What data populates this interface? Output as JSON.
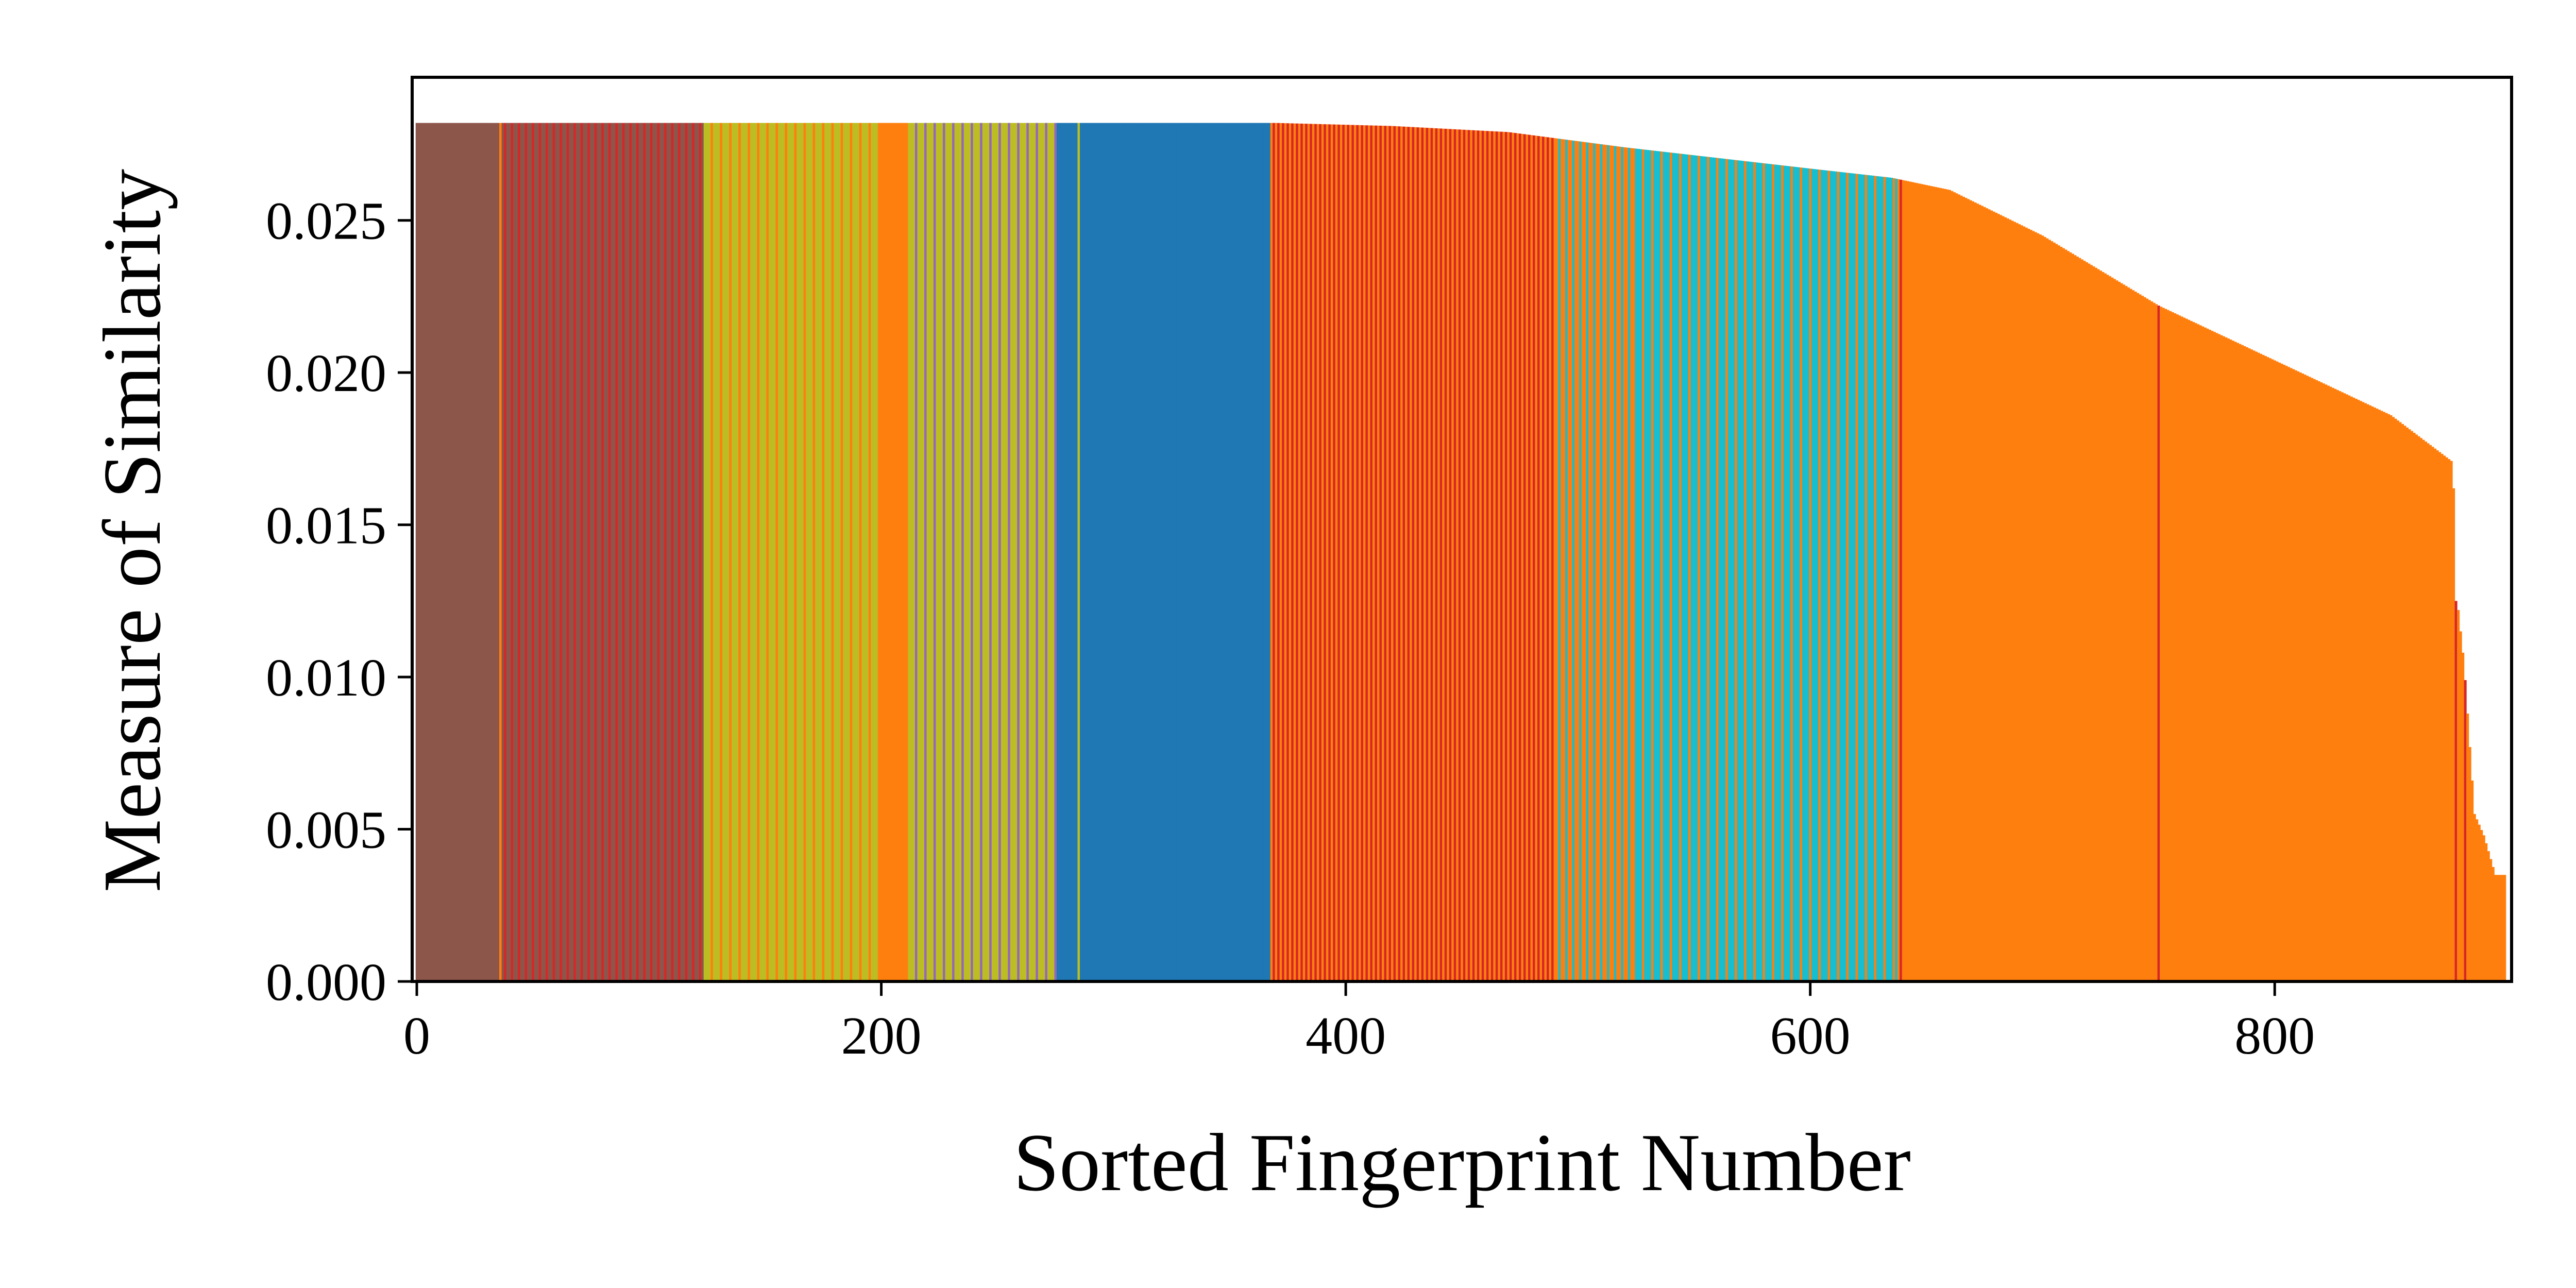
{
  "chart_data": {
    "type": "bar",
    "title": "",
    "xlabel": "Sorted Fingerprint Number",
    "ylabel": "Measure of Similarity",
    "xlim": [
      -2,
      902
    ],
    "ylim": [
      0,
      0.0297
    ],
    "x_ticks": [
      {
        "value": 0,
        "label": "0"
      },
      {
        "value": 200,
        "label": "200"
      },
      {
        "value": 400,
        "label": "400"
      },
      {
        "value": 600,
        "label": "600"
      },
      {
        "value": 800,
        "label": "800"
      }
    ],
    "y_ticks": [
      {
        "value": 0.0,
        "label": "0.000"
      },
      {
        "value": 0.005,
        "label": "0.005"
      },
      {
        "value": 0.01,
        "label": "0.010"
      },
      {
        "value": 0.015,
        "label": "0.015"
      },
      {
        "value": 0.02,
        "label": "0.020"
      },
      {
        "value": 0.025,
        "label": "0.025"
      }
    ],
    "grid": false,
    "legend": "none",
    "colors": {
      "brown": "#8c564b",
      "red": "#d62728",
      "olive": "#bcbd22",
      "orange": "#ff7f0e",
      "blue": "#1f77b4",
      "cyan": "#17becf",
      "purple": "#9467bd"
    },
    "bar_count": 900,
    "similarity_profile": [
      {
        "x": 0,
        "y": 0.0282
      },
      {
        "x": 370,
        "y": 0.0282
      },
      {
        "x": 420,
        "y": 0.0281
      },
      {
        "x": 470,
        "y": 0.0279
      },
      {
        "x": 520,
        "y": 0.0274
      },
      {
        "x": 600,
        "y": 0.0267
      },
      {
        "x": 635,
        "y": 0.0264
      },
      {
        "x": 660,
        "y": 0.026
      },
      {
        "x": 700,
        "y": 0.0245
      },
      {
        "x": 750,
        "y": 0.0222
      },
      {
        "x": 800,
        "y": 0.0204
      },
      {
        "x": 850,
        "y": 0.0186
      },
      {
        "x": 876,
        "y": 0.0171
      },
      {
        "x": 877,
        "y": 0.0162
      },
      {
        "x": 878,
        "y": 0.0125
      },
      {
        "x": 879,
        "y": 0.0122
      },
      {
        "x": 881,
        "y": 0.0108
      },
      {
        "x": 882,
        "y": 0.0099
      },
      {
        "x": 884,
        "y": 0.0077
      },
      {
        "x": 886,
        "y": 0.0055
      },
      {
        "x": 890,
        "y": 0.0048
      },
      {
        "x": 895,
        "y": 0.0035
      },
      {
        "x": 898,
        "y": 0.0035
      }
    ],
    "color_regions": [
      {
        "start": 0,
        "end": 36,
        "color": "brown",
        "stripe_color": "red",
        "stripe_every": 0
      },
      {
        "start": 36,
        "end": 124,
        "color": "brown",
        "stripe_color": "red",
        "stripe_every": 3
      },
      {
        "start": 124,
        "end": 200,
        "color": "olive",
        "stripe_color": "orange",
        "stripe_every": 4
      },
      {
        "start": 200,
        "end": 212,
        "color": "orange",
        "stripe_color": "red",
        "stripe_every": 0
      },
      {
        "start": 212,
        "end": 276,
        "color": "olive",
        "stripe_color": "purple",
        "stripe_every": 4
      },
      {
        "start": 276,
        "end": 368,
        "color": "blue",
        "stripe_color": "olive",
        "stripe_every": 0
      },
      {
        "start": 368,
        "end": 490,
        "color": "orange",
        "stripe_color": "red",
        "stripe_every": 2
      },
      {
        "start": 490,
        "end": 525,
        "color": "orange",
        "stripe_color": "cyan",
        "stripe_every": 3
      },
      {
        "start": 525,
        "end": 638,
        "color": "cyan",
        "stripe_color": "orange",
        "stripe_every": 4
      },
      {
        "start": 638,
        "end": 900,
        "color": "orange",
        "stripe_color": "red",
        "stripe_every": 0
      }
    ],
    "highlight_bars": [
      {
        "x": 36,
        "color": "orange"
      },
      {
        "x": 285,
        "color": "olive"
      },
      {
        "x": 639,
        "color": "red"
      },
      {
        "x": 750,
        "color": "red"
      },
      {
        "x": 878,
        "color": "red"
      },
      {
        "x": 882,
        "color": "red"
      }
    ]
  }
}
